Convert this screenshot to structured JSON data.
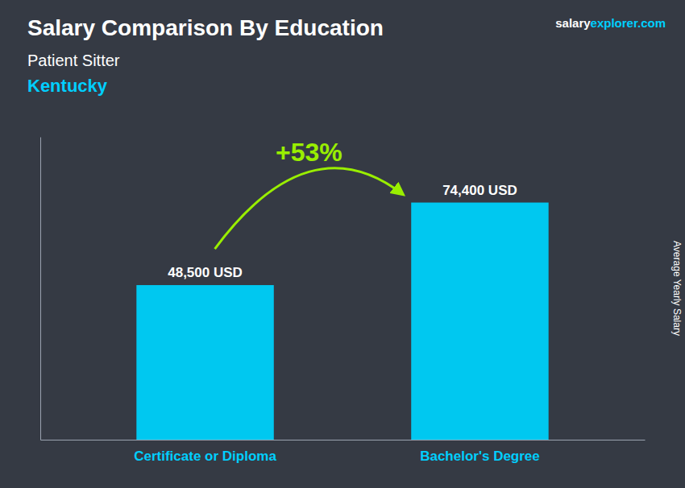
{
  "chart_data": {
    "type": "bar",
    "title": "Salary Comparison By Education",
    "subtitle": "Patient Sitter",
    "annotations": [
      "Kentucky",
      "salary",
      "explorer.com",
      "+53%"
    ],
    "y_label": "Average Yearly Salary",
    "categories": [
      "Certificate or Diploma",
      "Bachelor's Degree"
    ],
    "values": [
      48500,
      74400
    ],
    "value_labels": [
      "48,500 USD",
      "74,400 USD"
    ],
    "data_labels": true,
    "color": "#00C8F0",
    "ylim": [
      0,
      95000
    ],
    "tick_labels": false
  }
}
